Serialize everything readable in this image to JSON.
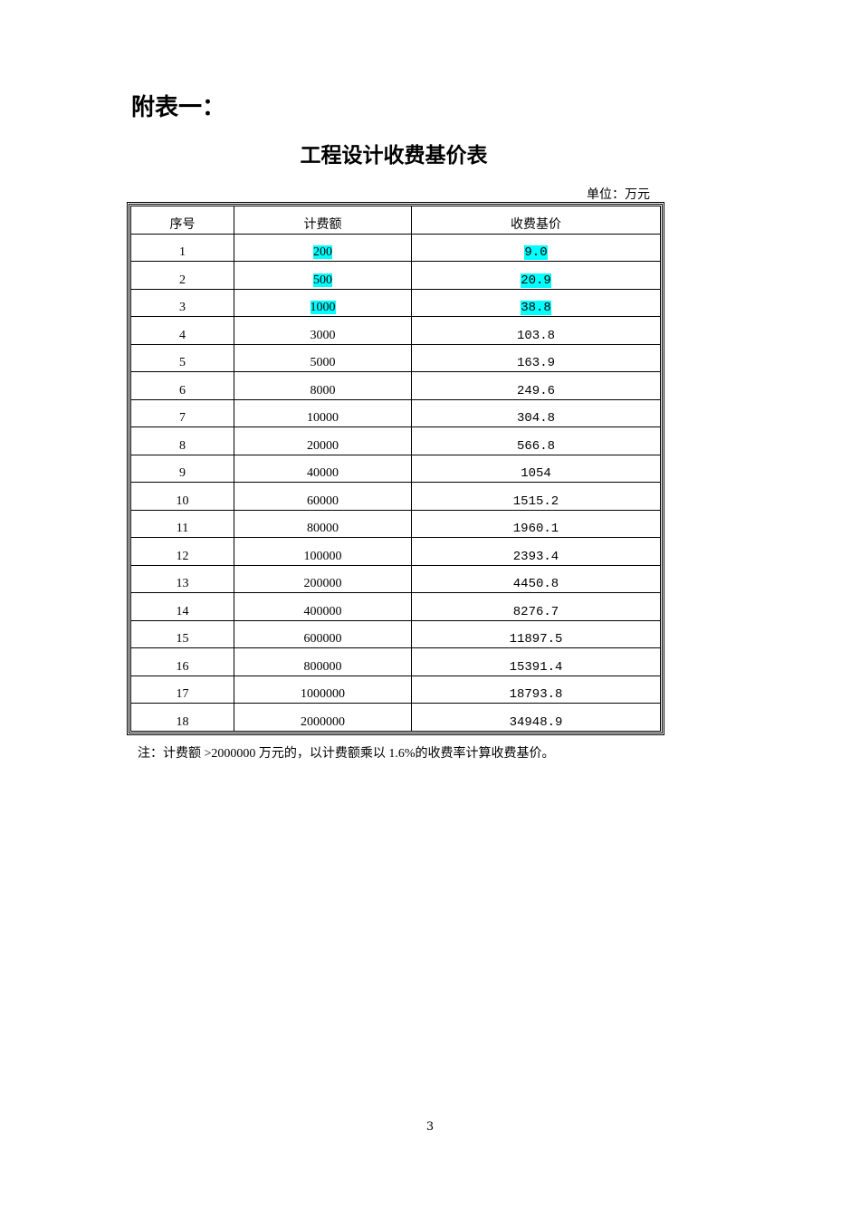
{
  "heading": "附表一：",
  "title": "工程设计收费基价表",
  "unit": "单位：万元",
  "table": {
    "headers": [
      "序号",
      "计费额",
      "收费基价"
    ],
    "rows": [
      [
        "1",
        "200",
        "9.0"
      ],
      [
        "2",
        "500",
        "20.9"
      ],
      [
        "3",
        "1000",
        "38.8"
      ],
      [
        "4",
        "3000",
        "103.8"
      ],
      [
        "5",
        "5000",
        "163.9"
      ],
      [
        "6",
        "8000",
        "249.6"
      ],
      [
        "7",
        "10000",
        "304.8"
      ],
      [
        "8",
        "20000",
        "566.8"
      ],
      [
        "9",
        "40000",
        "1054"
      ],
      [
        "10",
        "60000",
        "1515.2"
      ],
      [
        "11",
        "80000",
        "1960.1"
      ],
      [
        "12",
        "100000",
        "2393.4"
      ],
      [
        "13",
        "200000",
        "4450.8"
      ],
      [
        "14",
        "400000",
        "8276.7"
      ],
      [
        "15",
        "600000",
        "11897.5"
      ],
      [
        "16",
        "800000",
        "15391.4"
      ],
      [
        "17",
        "1000000",
        "18793.8"
      ],
      [
        "18",
        "2000000",
        "34948.9"
      ]
    ],
    "highlighted_rows": [
      0,
      1,
      2
    ],
    "highlight_color": "#00ffff"
  },
  "note": "注：计费额 >2000000 万元的，以计费额乘以 1.6%的收费率计算收费基价。",
  "page_number": "3"
}
